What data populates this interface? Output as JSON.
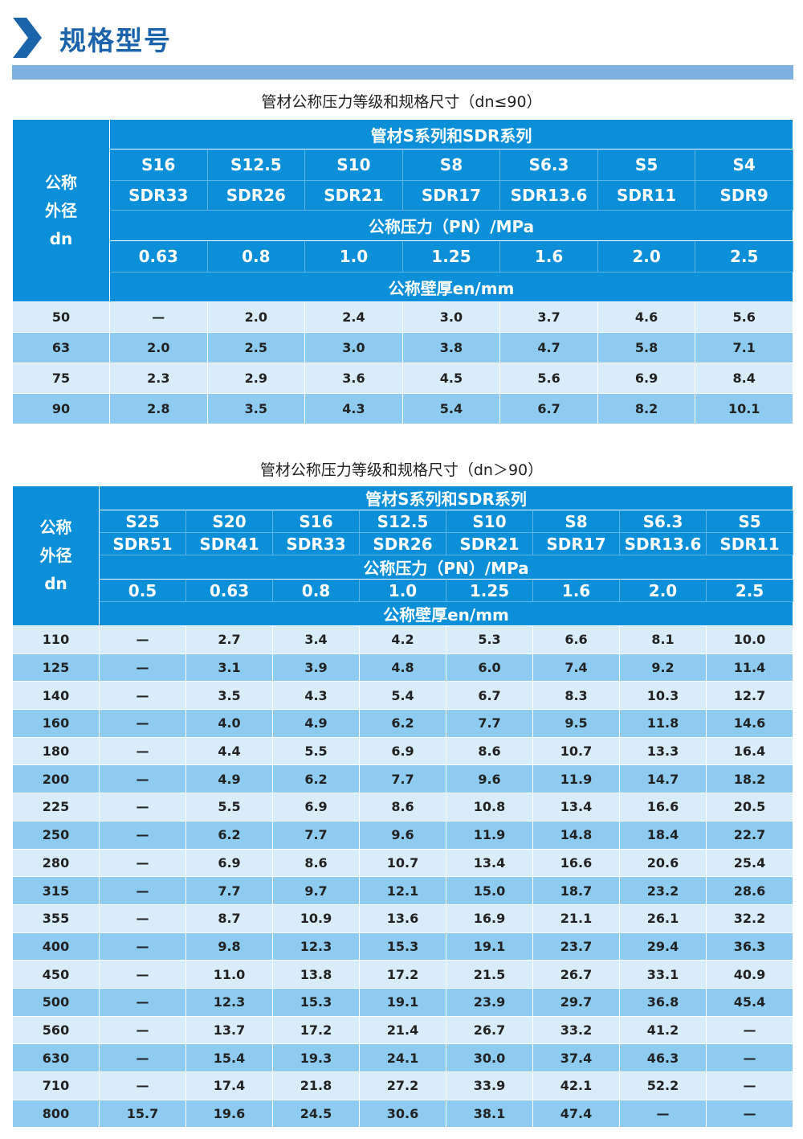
{
  "page_title": "规格型号",
  "colors": {
    "header": "#0a8fd8",
    "row_light": "#d8ecfa",
    "row_dark": "#8dcbf1",
    "title": "#1b63ab",
    "bar": "#7fb1df"
  },
  "table1": {
    "caption": "管材公称压力等级和规格尺寸（dn≤90）",
    "dn_label": [
      "公称",
      "外径",
      "dn"
    ],
    "series_label": "管材S系列和SDR系列",
    "s_series": [
      "S16",
      "S12.5",
      "S10",
      "S8",
      "S6.3",
      "S5",
      "S4"
    ],
    "sdr_series": [
      "SDR33",
      "SDR26",
      "SDR21",
      "SDR17",
      "SDR13.6",
      "SDR11",
      "SDR9"
    ],
    "pn_label": "公称压力（PN）/MPa",
    "pn": [
      "0.63",
      "0.8",
      "1.0",
      "1.25",
      "1.6",
      "2.0",
      "2.5"
    ],
    "wall_label": "公称壁厚en/mm",
    "rows": [
      [
        "50",
        "—",
        "2.0",
        "2.4",
        "3.0",
        "3.7",
        "4.6",
        "5.6"
      ],
      [
        "63",
        "2.0",
        "2.5",
        "3.0",
        "3.8",
        "4.7",
        "5.8",
        "7.1"
      ],
      [
        "75",
        "2.3",
        "2.9",
        "3.6",
        "4.5",
        "5.6",
        "6.9",
        "8.4"
      ],
      [
        "90",
        "2.8",
        "3.5",
        "4.3",
        "5.4",
        "6.7",
        "8.2",
        "10.1"
      ]
    ]
  },
  "table2": {
    "caption": "管材公称压力等级和规格尺寸（dn＞90）",
    "dn_label": [
      "公称",
      "外径",
      "dn"
    ],
    "series_label": "管材S系列和SDR系列",
    "s_series": [
      "S25",
      "S20",
      "S16",
      "S12.5",
      "S10",
      "S8",
      "S6.3",
      "S5"
    ],
    "sdr_series": [
      "SDR51",
      "SDR41",
      "SDR33",
      "SDR26",
      "SDR21",
      "SDR17",
      "SDR13.6",
      "SDR11"
    ],
    "pn_label": "公称压力（PN）/MPa",
    "pn": [
      "0.5",
      "0.63",
      "0.8",
      "1.0",
      "1.25",
      "1.6",
      "2.0",
      "2.5"
    ],
    "wall_label": "公称壁厚en/mm",
    "rows": [
      [
        "110",
        "—",
        "2.7",
        "3.4",
        "4.2",
        "5.3",
        "6.6",
        "8.1",
        "10.0"
      ],
      [
        "125",
        "—",
        "3.1",
        "3.9",
        "4.8",
        "6.0",
        "7.4",
        "9.2",
        "11.4"
      ],
      [
        "140",
        "—",
        "3.5",
        "4.3",
        "5.4",
        "6.7",
        "8.3",
        "10.3",
        "12.7"
      ],
      [
        "160",
        "—",
        "4.0",
        "4.9",
        "6.2",
        "7.7",
        "9.5",
        "11.8",
        "14.6"
      ],
      [
        "180",
        "—",
        "4.4",
        "5.5",
        "6.9",
        "8.6",
        "10.7",
        "13.3",
        "16.4"
      ],
      [
        "200",
        "—",
        "4.9",
        "6.2",
        "7.7",
        "9.6",
        "11.9",
        "14.7",
        "18.2"
      ],
      [
        "225",
        "—",
        "5.5",
        "6.9",
        "8.6",
        "10.8",
        "13.4",
        "16.6",
        "20.5"
      ],
      [
        "250",
        "—",
        "6.2",
        "7.7",
        "9.6",
        "11.9",
        "14.8",
        "18.4",
        "22.7"
      ],
      [
        "280",
        "—",
        "6.9",
        "8.6",
        "10.7",
        "13.4",
        "16.6",
        "20.6",
        "25.4"
      ],
      [
        "315",
        "—",
        "7.7",
        "9.7",
        "12.1",
        "15.0",
        "18.7",
        "23.2",
        "28.6"
      ],
      [
        "355",
        "—",
        "8.7",
        "10.9",
        "13.6",
        "16.9",
        "21.1",
        "26.1",
        "32.2"
      ],
      [
        "400",
        "—",
        "9.8",
        "12.3",
        "15.3",
        "19.1",
        "23.7",
        "29.4",
        "36.3"
      ],
      [
        "450",
        "—",
        "11.0",
        "13.8",
        "17.2",
        "21.5",
        "26.7",
        "33.1",
        "40.9"
      ],
      [
        "500",
        "—",
        "12.3",
        "15.3",
        "19.1",
        "23.9",
        "29.7",
        "36.8",
        "45.4"
      ],
      [
        "560",
        "—",
        "13.7",
        "17.2",
        "21.4",
        "26.7",
        "33.2",
        "41.2",
        "—"
      ],
      [
        "630",
        "—",
        "15.4",
        "19.3",
        "24.1",
        "30.0",
        "37.4",
        "46.3",
        "—"
      ],
      [
        "710",
        "—",
        "17.4",
        "21.8",
        "27.2",
        "33.9",
        "42.1",
        "52.2",
        "—"
      ],
      [
        "800",
        "15.7",
        "19.6",
        "24.5",
        "30.6",
        "38.1",
        "47.4",
        "—",
        "—"
      ]
    ]
  }
}
